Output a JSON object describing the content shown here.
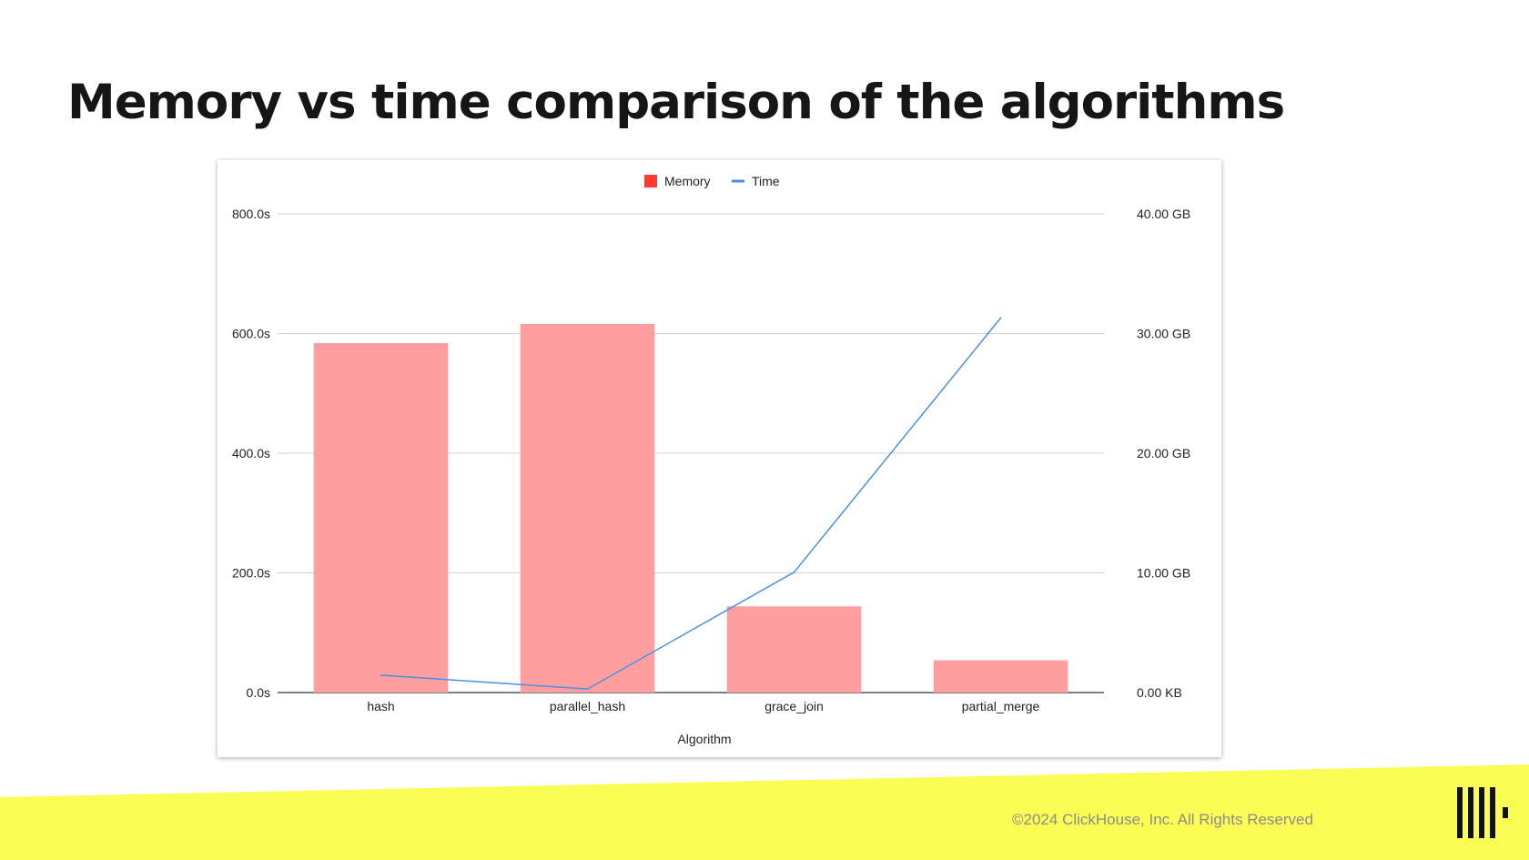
{
  "slide": {
    "title": "Memory vs time comparison of the algorithms",
    "footer": "©2024 ClickHouse, Inc. All Rights Reserved",
    "logo_icon": "clickhouse-logo-icon",
    "band_color": "#fbfd54"
  },
  "chart_data": {
    "type": "bar",
    "title": "",
    "xlabel": "Algorithm",
    "categories": [
      "hash",
      "parallel_hash",
      "grace_join",
      "partial_merge"
    ],
    "series": [
      {
        "name": "Memory",
        "type": "bar",
        "axis": "right",
        "unit": "GB",
        "color": "#ff9e9e",
        "values": [
          29.2,
          30.8,
          7.2,
          2.7
        ]
      },
      {
        "name": "Time",
        "type": "line",
        "axis": "left",
        "unit": "s",
        "color": "#4a90e2",
        "values": [
          29,
          6,
          201,
          626
        ]
      }
    ],
    "left_axis": {
      "ylim": [
        0,
        800
      ],
      "ticks": [
        "800.0s",
        "600.0s",
        "400.0s",
        "200.0s",
        "0.0s"
      ]
    },
    "right_axis": {
      "ylim": [
        0,
        40
      ],
      "ticks": [
        "40.00 GB",
        "30.00 GB",
        "20.00 GB",
        "10.00 GB",
        "0.00 KB"
      ]
    },
    "legend": [
      {
        "label": "Memory",
        "color": "#ff3b30",
        "icon": "square"
      },
      {
        "label": "Time",
        "color": "#4a90e2",
        "icon": "line"
      }
    ],
    "legend_position": "top-center",
    "grid": true
  }
}
